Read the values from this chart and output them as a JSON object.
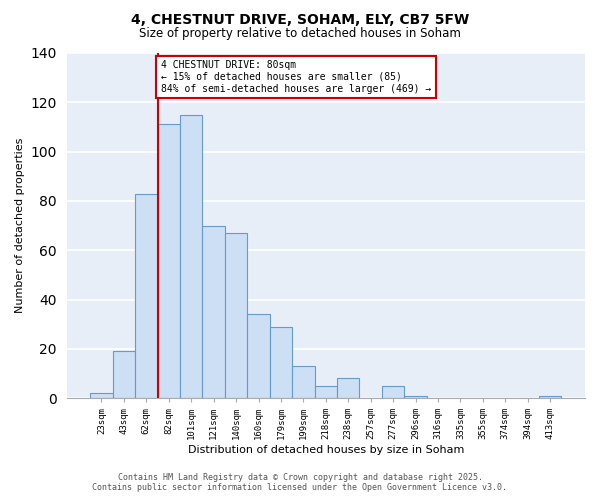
{
  "title": "4, CHESTNUT DRIVE, SOHAM, ELY, CB7 5FW",
  "subtitle": "Size of property relative to detached houses in Soham",
  "xlabel": "Distribution of detached houses by size in Soham",
  "ylabel": "Number of detached properties",
  "bar_labels": [
    "23sqm",
    "43sqm",
    "62sqm",
    "82sqm",
    "101sqm",
    "121sqm",
    "140sqm",
    "160sqm",
    "179sqm",
    "199sqm",
    "218sqm",
    "238sqm",
    "257sqm",
    "277sqm",
    "296sqm",
    "316sqm",
    "335sqm",
    "355sqm",
    "374sqm",
    "394sqm",
    "413sqm"
  ],
  "bar_values": [
    2,
    19,
    83,
    111,
    115,
    70,
    67,
    34,
    29,
    13,
    5,
    8,
    0,
    5,
    1,
    0,
    0,
    0,
    0,
    0,
    1
  ],
  "bar_color": "#ccdff5",
  "bar_edge_color": "#6699cc",
  "vline_color": "#cc0000",
  "annotation_text": "4 CHESTNUT DRIVE: 80sqm\n← 15% of detached houses are smaller (85)\n84% of semi-detached houses are larger (469) →",
  "annotation_box_color": "#ffffff",
  "annotation_box_edge_color": "#cc0000",
  "ylim": [
    0,
    140
  ],
  "yticks": [
    0,
    20,
    40,
    60,
    80,
    100,
    120,
    140
  ],
  "plot_bg_color": "#e8eef8",
  "fig_bg_color": "#ffffff",
  "grid_color": "#ffffff",
  "footer_line1": "Contains HM Land Registry data © Crown copyright and database right 2025.",
  "footer_line2": "Contains public sector information licensed under the Open Government Licence v3.0."
}
